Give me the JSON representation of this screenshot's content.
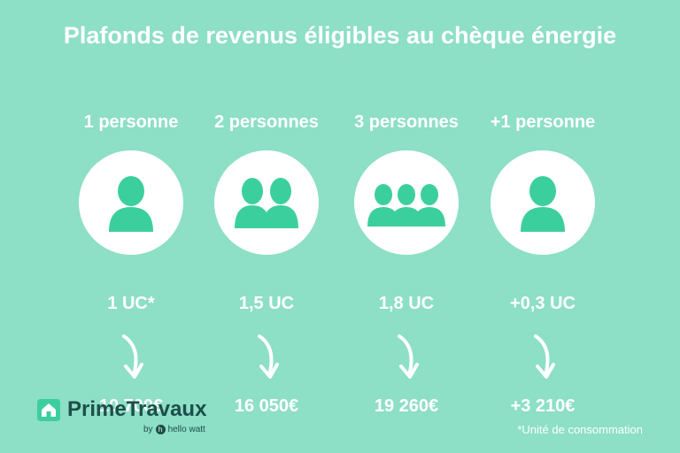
{
  "title": "Plafonds de revenus éligibles au chèque énergie",
  "columns": [
    {
      "label": "1 personne",
      "uc": "1 UC*",
      "amount": "10 700€",
      "people": 1,
      "icon": "person-icon"
    },
    {
      "label": "2 personnes",
      "uc": "1,5 UC",
      "amount": "16 050€",
      "people": 2,
      "icon": "two-persons-icon"
    },
    {
      "label": "3 personnes",
      "uc": "1,8 UC",
      "amount": "19 260€",
      "people": 3,
      "icon": "three-persons-icon"
    },
    {
      "label": "+1 personne",
      "uc": "+0,3 UC",
      "amount": "+3 210€",
      "people": 1,
      "icon": "person-icon"
    }
  ],
  "logo": {
    "name": "PrimeTravaux",
    "by": "by",
    "partner": "hello watt"
  },
  "footnote": "*Unité de consommation",
  "colors": {
    "background": "#8ddfc5",
    "icon": "#3ccf9e",
    "logo": "#1c4f4a"
  }
}
